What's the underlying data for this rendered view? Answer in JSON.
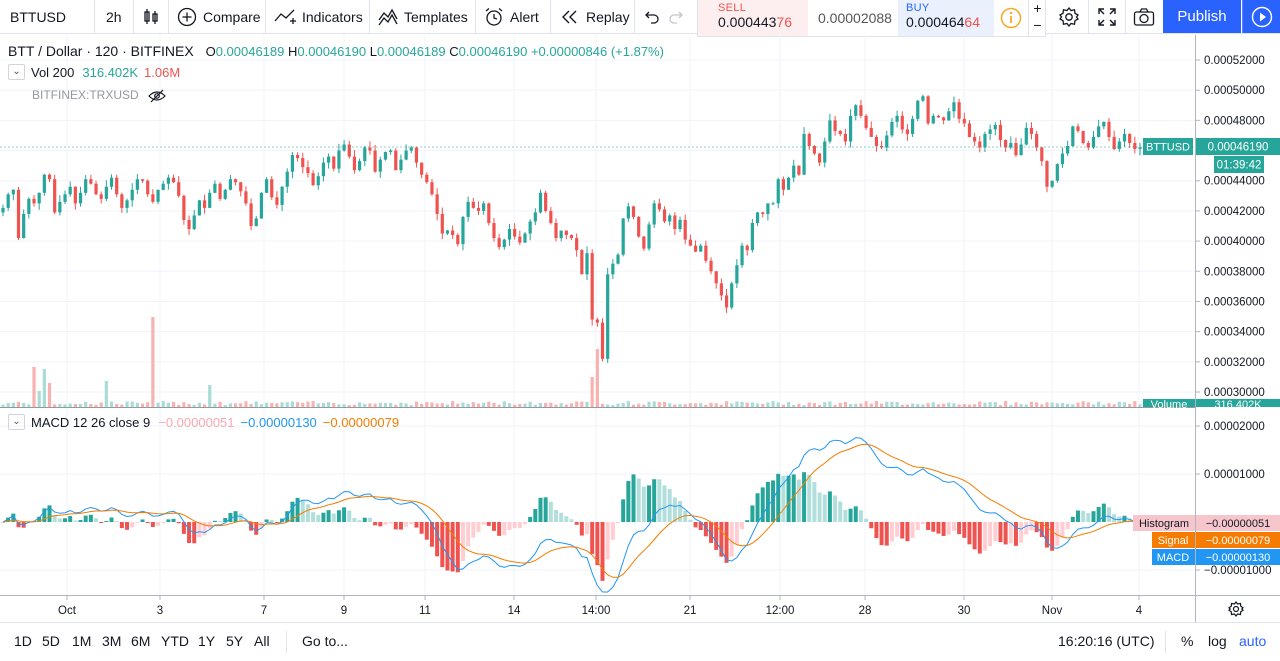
{
  "toolbar": {
    "symbol": "BTTUSD",
    "interval": "2h",
    "compare": "Compare",
    "indicators": "Indicators",
    "templates": "Templates",
    "alert": "Alert",
    "replay": "Replay",
    "publish": "Publish",
    "icons": [
      "candles-icon",
      "plus-circle-icon",
      "indicators-icon",
      "templates-icon",
      "alert-clock-icon",
      "replay-icon",
      "undo-icon",
      "redo-icon",
      "settings-gear-icon",
      "fullscreen-icon",
      "camera-icon",
      "play-icon"
    ]
  },
  "trade": {
    "sell_label": "SELL",
    "sell_main": "0.000443",
    "sell_tail": "76",
    "spread": "0.00002088",
    "buy_label": "BUY",
    "buy_main": "0.000464",
    "buy_tail": "64"
  },
  "legend": {
    "symbol": "BTT / Dollar · 120 · BITFINEX",
    "o_lbl": "O",
    "o": "0.00046189",
    "h_lbl": "H",
    "h": "0.00046190",
    "l_lbl": "L",
    "l": "0.00046189",
    "c_lbl": "C",
    "c": "0.00046190",
    "change": "+0.00000846 (+1.87%)",
    "vol_name": "Vol 200",
    "vol1": "316.402K",
    "vol2": "1.06M",
    "source": "BITFINEX:TRXUSD"
  },
  "macd_legend": {
    "name": "MACD 12 26 close 9",
    "hist": "−0.00000051",
    "macd": "−0.00000130",
    "signal": "−0.00000079"
  },
  "price_axis": [
    "0.00052000",
    "0.00050000",
    "0.00048000",
    "0.00046000",
    "0.00044000",
    "0.00042000",
    "0.00040000",
    "0.00038000",
    "0.00036000",
    "0.00034000",
    "0.00032000",
    "0.00030000"
  ],
  "price_tags": {
    "last": "BTTUSD",
    "last_value": "0.00046190",
    "countdown": "01:39:42",
    "volume": "Volume",
    "volume_value": "316.402K"
  },
  "macd_axis": [
    "0.00002000",
    "0.00001000",
    "−0.00001000"
  ],
  "macd_tags": {
    "hist": "Histogram",
    "hist_value": "−0.00000051",
    "signal": "Signal",
    "signal_value": "−0.00000079",
    "macd": "MACD",
    "macd_value": "−0.00000130"
  },
  "time_axis": [
    "Oct",
    "3",
    "7",
    "9",
    "11",
    "14",
    "14:00",
    "21",
    "12:00",
    "28",
    "30",
    "Nov",
    "4"
  ],
  "bottom": {
    "ranges": [
      "1D",
      "5D",
      "1M",
      "3M",
      "6M",
      "YTD",
      "1Y",
      "5Y",
      "All"
    ],
    "goto": "Go to...",
    "clock": "16:20:16 (UTC)",
    "percent": "%",
    "log": "log",
    "auto": "auto"
  },
  "colors": {
    "up": "#26a69a",
    "down": "#ef5350",
    "accent": "#2962ff",
    "macd": "#2196f3",
    "signal": "#f57c00"
  },
  "chart_data": [
    {
      "type": "candlestick",
      "series": [
        {
          "name": "BTT / Dollar",
          "close": [
            0.000422,
            0.000431,
            0.000434,
            0.000402,
            0.000418,
            0.000428,
            0.000425,
            0.000432,
            0.000444,
            0.000441,
            0.000419,
            0.000426,
            0.000431,
            0.000436,
            0.000425,
            0.000432,
            0.000441,
            0.000438,
            0.000431,
            0.000428,
            0.000436,
            0.000442,
            0.000431,
            0.000422,
            0.000427,
            0.000434,
            0.000441,
            0.00044,
            0.000431,
            0.000426,
            0.000434,
            0.000438,
            0.000442,
            0.000439,
            0.00043,
            0.000414,
            0.000408,
            0.000417,
            0.000427,
            0.000422,
            0.000432,
            0.000438,
            0.000428,
            0.000434,
            0.000441,
            0.000439,
            0.000433,
            0.000425,
            0.00041,
            0.000415,
            0.000432,
            0.000441,
            0.000429,
            0.000424,
            0.000436,
            0.000446,
            0.000457,
            0.000455,
            0.000449,
            0.000445,
            0.000437,
            0.000443,
            0.000452,
            0.000456,
            0.000448,
            0.00046,
            0.000464,
            0.000456,
            0.000447,
            0.000453,
            0.000462,
            0.00046,
            0.000446,
            0.000454,
            0.000459,
            0.00046,
            0.000447,
            0.000454,
            0.00046,
            0.000462,
            0.000452,
            0.000444,
            0.000439,
            0.000431,
            0.000418,
            0.000405,
            0.000407,
            0.000404,
            0.000398,
            0.000416,
            0.000426,
            0.000422,
            0.00042,
            0.000425,
            0.000412,
            0.000402,
            0.000396,
            0.000401,
            0.000408,
            0.000403,
            0.000399,
            0.000405,
            0.000413,
            0.000419,
            0.000432,
            0.00042,
            0.000412,
            0.000402,
            0.000407,
            0.000404,
            0.000402,
            0.000394,
            0.000378,
            0.000392,
            0.000348,
            0.000346,
            0.000322,
            0.000378,
            0.000385,
            0.000391,
            0.000415,
            0.000423,
            0.000416,
            0.000403,
            0.000395,
            0.000411,
            0.000425,
            0.000421,
            0.000413,
            0.000417,
            0.000408,
            0.000414,
            0.000401,
            0.000397,
            0.000393,
            0.000397,
            0.000387,
            0.00038,
            0.000372,
            0.000364,
            0.000356,
            0.000372,
            0.000384,
            0.000397,
            0.000394,
            0.000412,
            0.000419,
            0.000418,
            0.000425,
            0.000425,
            0.000441,
            0.000434,
            0.000442,
            0.00045,
            0.000444,
            0.000471,
            0.000463,
            0.000458,
            0.000452,
            0.000466,
            0.00048,
            0.000473,
            0.000471,
            0.000466,
            0.000483,
            0.00049,
            0.000483,
            0.000475,
            0.000469,
            0.000463,
            0.000462,
            0.00047,
            0.000479,
            0.000483,
            0.000474,
            0.000471,
            0.000481,
            0.000493,
            0.000496,
            0.000478,
            0.000483,
            0.000482,
            0.00048,
            0.000486,
            0.000492,
            0.000481,
            0.000478,
            0.000469,
            0.000466,
            0.000462,
            0.000471,
            0.000474,
            0.000477,
            0.000467,
            0.000462,
            0.000465,
            0.000457,
            0.000464,
            0.000475,
            0.000471,
            0.000462,
            0.000453,
            0.000436,
            0.00044,
            0.000451,
            0.000458,
            0.000463,
            0.000476,
            0.000473,
            0.000465,
            0.000462,
            0.000469,
            0.000476,
            0.000479,
            0.000469,
            0.000461,
            0.000466,
            0.000471,
            0.000465,
            0.000461,
            0.000462
          ]
        }
      ]
    },
    {
      "type": "bar",
      "series": [
        {
          "name": "Volume"
        }
      ],
      "values_note": ""
    },
    {
      "type": "line",
      "series": [
        {
          "name": "MACD"
        },
        {
          "name": "Signal"
        },
        {
          "name": "Histogram"
        }
      ]
    }
  ]
}
